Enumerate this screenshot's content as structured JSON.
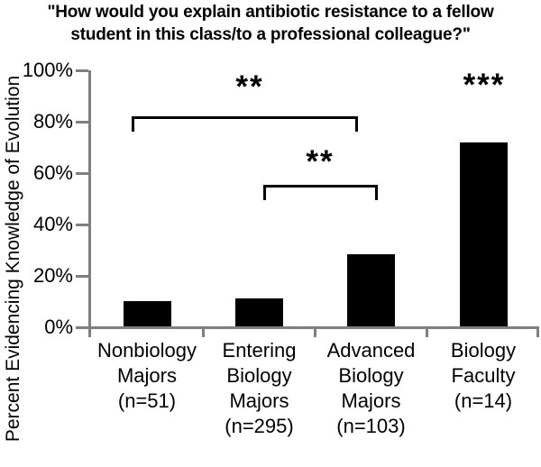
{
  "figure": {
    "title_line1": "\"How would you explain antibiotic resistance to a fellow",
    "title_line2": "student in this class/to a professional colleague?\""
  },
  "y_axis": {
    "label": "Percent Evidencing Knowledge of Evolution",
    "ticks": [
      "100%",
      "80%",
      "60%",
      "40%",
      "20%",
      "0%"
    ]
  },
  "x_axis": {
    "labels": [
      "Nonbiology\nMajors\n(n=51)",
      "Entering\nBiology\nMajors\n(n=295)",
      "Advanced\nBiology\nMajors\n(n=103)",
      "Biology\nFaculty\n(n=14)"
    ]
  },
  "significance": {
    "bracket_big_label": "**",
    "bracket_small_label": "**",
    "faculty_label": "***"
  },
  "chart_data": {
    "type": "bar",
    "title": "\"How would you explain antibiotic resistance to a fellow student in this class/to a professional colleague?\"",
    "categories": [
      "Nonbiology Majors (n=51)",
      "Entering Biology Majors (n=295)",
      "Advanced Biology Majors (n=103)",
      "Biology Faculty (n=14)"
    ],
    "values": [
      10,
      11,
      28,
      72
    ],
    "xlabel": "",
    "ylabel": "Percent Evidencing Knowledge of Evolution",
    "ylim": [
      0,
      100
    ],
    "ytick_step": 20,
    "ytick_format": "percent",
    "grid": false,
    "legend": false,
    "bar_color": "#000000",
    "axis_color": "#7f7f7f",
    "background_color": "#ffffff",
    "annotations": [
      {
        "type": "significance-bracket",
        "from": "Nonbiology Majors (n=51)",
        "to": "Advanced Biology Majors (n=103)",
        "label": "**"
      },
      {
        "type": "significance-bracket",
        "from": "Entering Biology Majors (n=295)",
        "to": "Advanced Biology Majors (n=103)",
        "label": "**"
      },
      {
        "type": "significance-label",
        "over": "Biology Faculty (n=14)",
        "label": "***"
      }
    ]
  }
}
